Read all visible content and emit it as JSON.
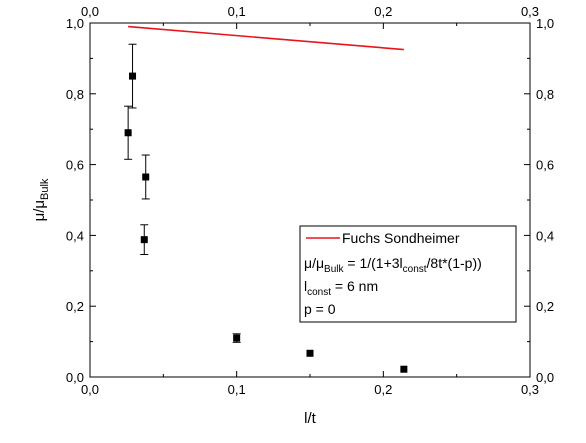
{
  "chart_data": {
    "type": "scatter",
    "title": "",
    "xlabel": "l/t",
    "ylabel": {
      "main": "μ/μ",
      "sub": "Bulk"
    },
    "xlim": [
      0.0,
      0.3
    ],
    "ylim": [
      0.0,
      1.0
    ],
    "x_ticks": [
      0.0,
      0.1,
      0.2,
      0.3
    ],
    "y_ticks": [
      0.0,
      0.2,
      0.4,
      0.6,
      0.8,
      1.0
    ],
    "x_tick_labels": [
      "0,0",
      "0,1",
      "0,2",
      "0,3"
    ],
    "y_tick_labels": [
      "0,0",
      "0,2",
      "0,4",
      "0,6",
      "0,8",
      "1,0"
    ],
    "mirror_axes": true,
    "grid": false,
    "legend_position": "center-right",
    "series": [
      {
        "kind": "scatter",
        "marker": "square",
        "color": "#000000",
        "points": [
          {
            "x": 0.026,
            "y": 0.69,
            "err": 0.075
          },
          {
            "x": 0.029,
            "y": 0.85,
            "err": 0.09
          },
          {
            "x": 0.037,
            "y": 0.388,
            "err": 0.042
          },
          {
            "x": 0.038,
            "y": 0.565,
            "err": 0.062
          },
          {
            "x": 0.1,
            "y": 0.11,
            "err": 0.012
          },
          {
            "x": 0.15,
            "y": 0.067,
            "err": 0.0
          },
          {
            "x": 0.214,
            "y": 0.022,
            "err": 0.0
          }
        ]
      },
      {
        "name": "Fuchs Sondheimer",
        "kind": "line",
        "color": "#e8161b",
        "points": [
          {
            "x": 0.026,
            "y": 0.99
          },
          {
            "x": 0.214,
            "y": 0.925
          }
        ]
      }
    ],
    "legend": {
      "entry": "Fuchs Sondheimer",
      "formula": [
        {
          "t": "μ/μ"
        },
        {
          "t": "Bulk",
          "sub": true
        },
        {
          "t": " = 1/(1+3l"
        },
        {
          "t": "const",
          "sub": true
        },
        {
          "t": "/8t*(1-p))"
        }
      ],
      "lconst": [
        {
          "t": "l"
        },
        {
          "t": "const",
          "sub": true
        },
        {
          "t": " = 6 nm"
        }
      ],
      "p": "p = 0"
    }
  }
}
